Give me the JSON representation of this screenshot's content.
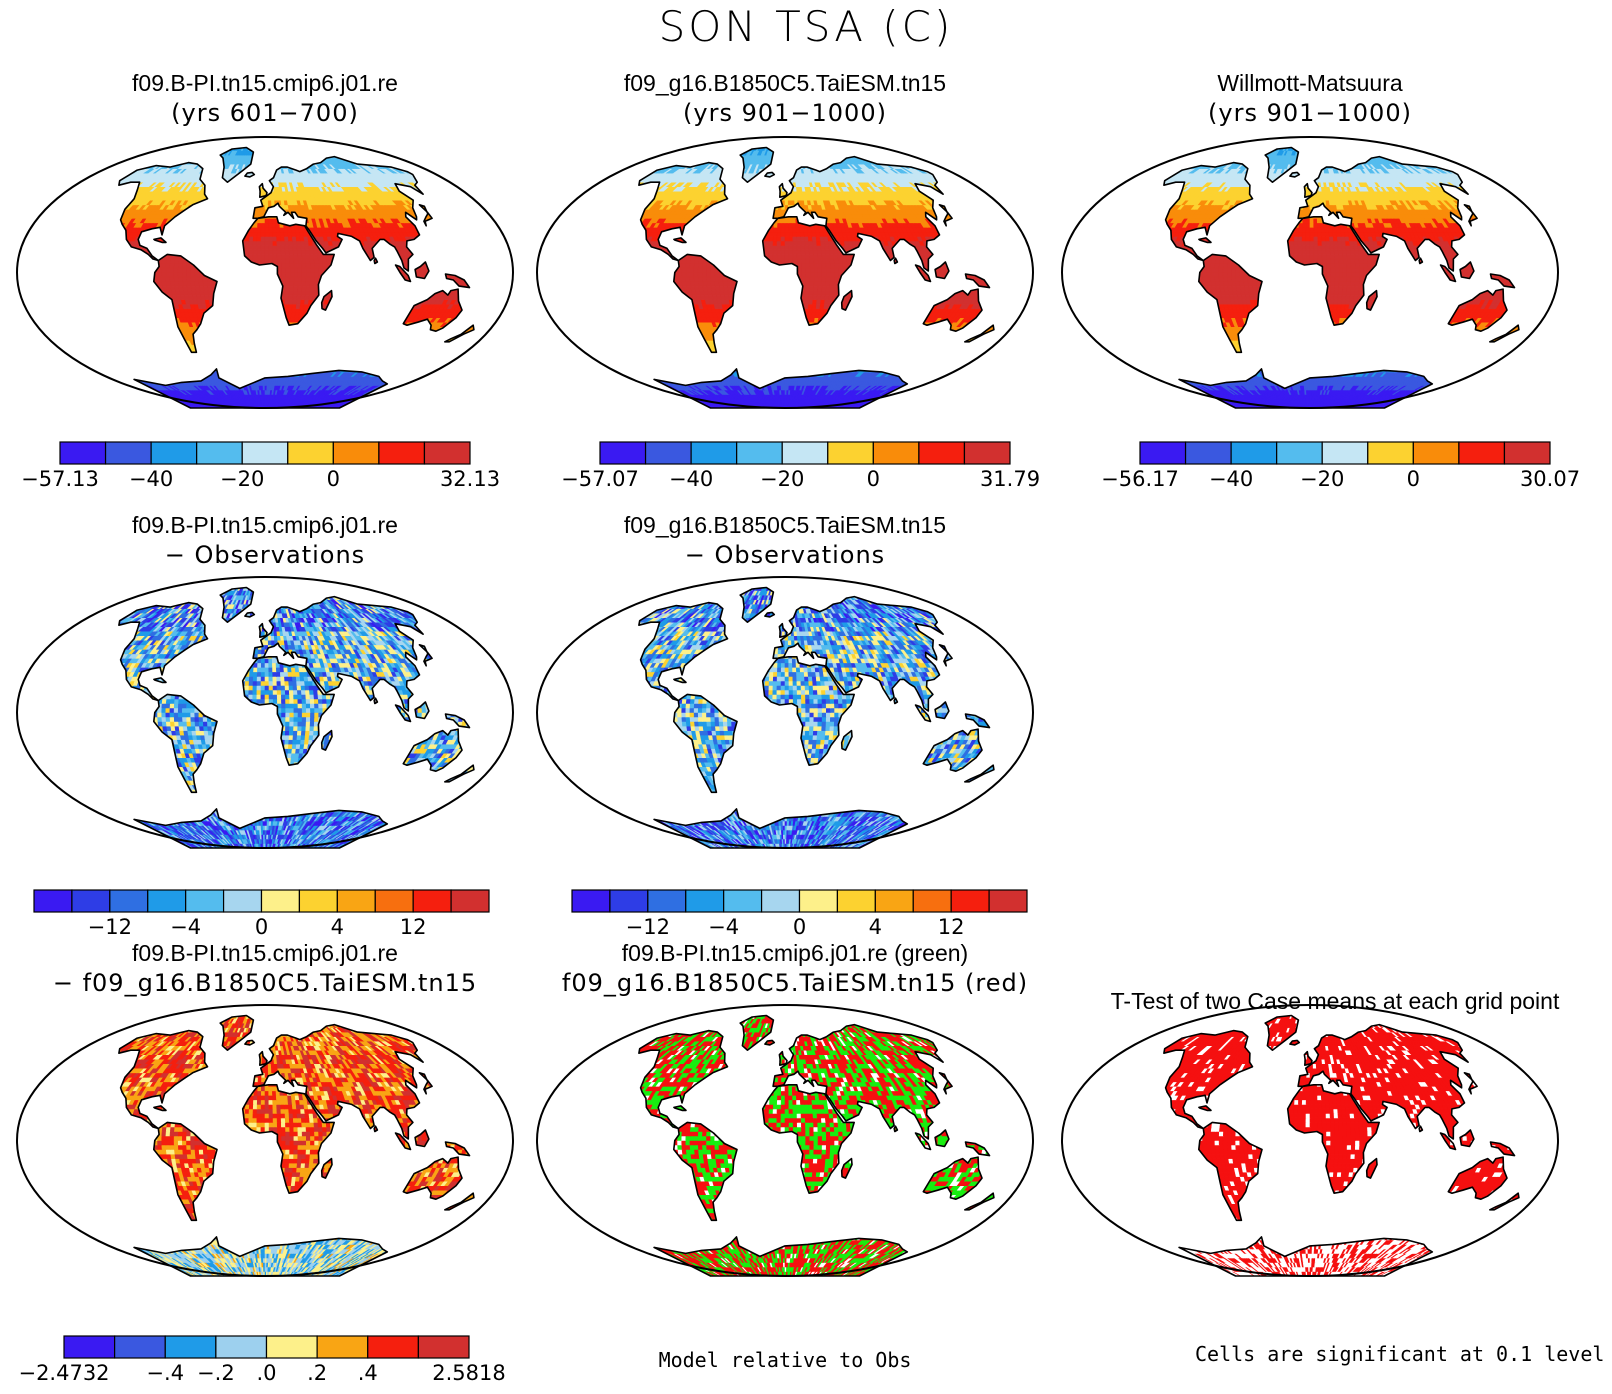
{
  "title": "SON TSA (C)",
  "colors": {
    "abs": [
      "#3a1af2",
      "#3a58e0",
      "#1f9be8",
      "#54bcee",
      "#c5e6f4",
      "#fcd230",
      "#f98c0a",
      "#f51f0e",
      "#d2302f"
    ],
    "diff": [
      "#3a1af2",
      "#2e3de6",
      "#2f6fe2",
      "#1f9be8",
      "#54bcee",
      "#a7d6ef",
      "#fdf08a",
      "#fcd230",
      "#f9a514",
      "#f76f0f",
      "#f51f0e",
      "#d2302f"
    ],
    "case": [
      "#3a1af2",
      "#3a58e0",
      "#1f9be8",
      "#9dd0ee",
      "#fdf08a",
      "#f9a514",
      "#f51f0e",
      "#d2302f"
    ],
    "green": "#18ee10",
    "red": "#f51010"
  },
  "panels": [
    {
      "id": "p1",
      "line1": "f09.B-PI.tn15.cmip6.j01.re",
      "line2": "(yrs 601−700)",
      "scheme": "abs"
    },
    {
      "id": "p2",
      "line1": "f09_g16.B1850C5.TaiESM.tn15",
      "line2": "(yrs 901−1000)",
      "scheme": "abs"
    },
    {
      "id": "p3",
      "line1": "Willmott-Matsuura",
      "line2": "(yrs 901−1000)",
      "scheme": "abs"
    },
    {
      "id": "p4",
      "line1": "f09.B-PI.tn15.cmip6.j01.re",
      "line2": "− Observations",
      "scheme": "diff"
    },
    {
      "id": "p5",
      "line1": "f09_g16.B1850C5.TaiESM.tn15",
      "line2": "− Observations",
      "scheme": "diff"
    },
    {
      "id": "p6",
      "line1": "f09.B-PI.tn15.cmip6.j01.re",
      "line2": "− f09_g16.B1850C5.TaiESM.tn15",
      "scheme": "case"
    },
    {
      "id": "p7",
      "line1": "f09.B-PI.tn15.cmip6.j01.re (green)",
      "line2": "f09_g16.B1850C5.TaiESM.tn15 (red)",
      "scheme": "comp"
    },
    {
      "id": "p8",
      "line1": "T-Test of two Case means at each grid point",
      "line2": "",
      "scheme": "ttest"
    }
  ],
  "colorbars": [
    {
      "id": "cb1",
      "scheme": "abs",
      "labels": [
        "−57.13",
        "−40",
        "−20",
        "0",
        "32.13"
      ]
    },
    {
      "id": "cb2",
      "scheme": "abs",
      "labels": [
        "−57.07",
        "−40",
        "−20",
        "0",
        "31.79"
      ]
    },
    {
      "id": "cb3",
      "scheme": "abs",
      "labels": [
        "−56.17",
        "−40",
        "−20",
        "0",
        "30.07"
      ]
    },
    {
      "id": "cb4",
      "scheme": "diff",
      "labels": [
        "−12",
        "−4",
        "0",
        "4",
        "12"
      ]
    },
    {
      "id": "cb5",
      "scheme": "diff",
      "labels": [
        "−12",
        "−4",
        "0",
        "4",
        "12"
      ]
    },
    {
      "id": "cb6",
      "scheme": "case",
      "labels": [
        "−2.4732",
        "−.4",
        "−.2",
        ".0",
        ".2",
        ".4",
        "2.5818"
      ]
    }
  ],
  "notes": {
    "model_vs_obs": "Model relative to Obs",
    "significance": "Cells are significant at 0.1 level"
  }
}
